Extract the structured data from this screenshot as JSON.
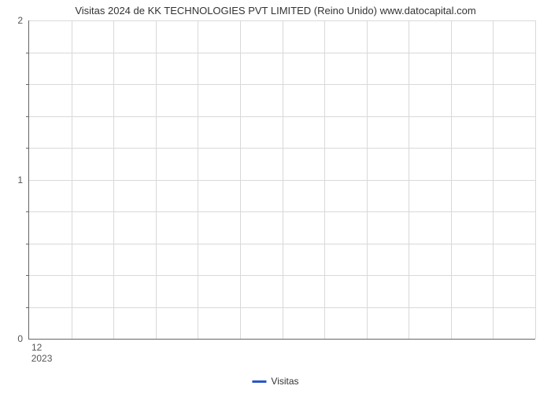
{
  "chart": {
    "type": "line",
    "title": "Visitas 2024 de KK TECHNOLOGIES PVT LIMITED (Reino Unido) www.datocapital.com",
    "title_fontsize": 13,
    "title_color": "#333333",
    "background_color": "#ffffff",
    "grid_color": "#d9d9d9",
    "axis_color": "#666666",
    "tick_color": "#555555",
    "tick_fontsize": 12,
    "ylim": [
      0,
      2
    ],
    "ytick_major": [
      0,
      1,
      2
    ],
    "ytick_minor_count_between": 4,
    "xtick_major": [
      "12"
    ],
    "xsub_labels": [
      "2023"
    ],
    "x_grid_count": 12,
    "legend": {
      "label": "Visitas",
      "color": "#2a56c6",
      "position": "bottom-center"
    },
    "series": {
      "name": "Visitas",
      "color": "#2a56c6",
      "data": []
    }
  }
}
